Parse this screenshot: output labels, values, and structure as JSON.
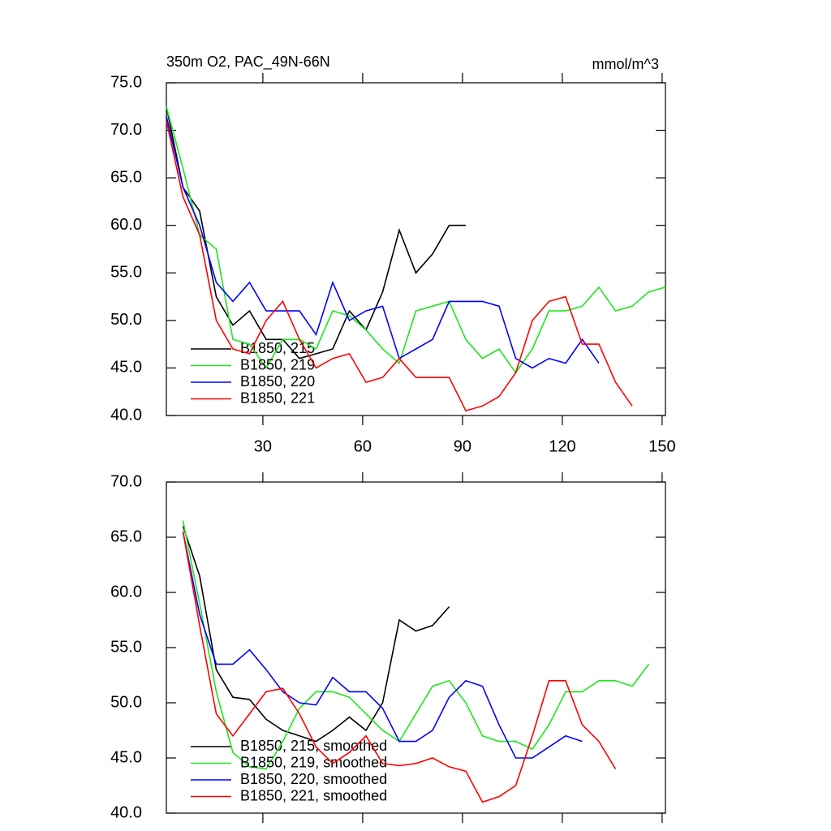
{
  "chart_data": [
    {
      "type": "line",
      "title": "350m O2, PAC_49N-66N",
      "y_units": "mmol/m^3",
      "x": [
        1,
        6,
        11,
        16,
        21,
        26,
        31,
        36,
        41,
        46,
        51,
        56,
        61,
        66,
        71,
        76,
        81,
        86,
        91,
        96,
        101,
        106,
        111,
        116,
        121,
        126,
        131,
        136,
        141,
        146,
        151
      ],
      "xlim": [
        1,
        151
      ],
      "xticks": [
        30,
        60,
        90,
        120,
        150
      ],
      "ylim": [
        40,
        75
      ],
      "yticks": [
        {
          "value": 40,
          "label": "40.0"
        },
        {
          "value": 45,
          "label": "45.0"
        },
        {
          "value": 50,
          "label": "50.0"
        },
        {
          "value": 55,
          "label": "55.0"
        },
        {
          "value": 60,
          "label": "60.0"
        },
        {
          "value": 65,
          "label": "65.0"
        },
        {
          "value": 70,
          "label": "70.0"
        },
        {
          "value": 75,
          "label": "75.0"
        }
      ],
      "legend": "lower left",
      "series": [
        {
          "name": "B1850, 215",
          "color": "#000000",
          "values": [
            72.5,
            64,
            61.5,
            52.5,
            49.5,
            51,
            48,
            48,
            46,
            46.5,
            47,
            51,
            49,
            53,
            59.5,
            55,
            57,
            60,
            60,
            null,
            null,
            null,
            null,
            null,
            null,
            null,
            null,
            null,
            null,
            null,
            null
          ]
        },
        {
          "name": "B1850, 219",
          "color": "#1ee61e",
          "values": [
            72.5,
            66,
            59,
            57.5,
            48,
            47.5,
            45,
            48,
            48,
            47,
            51,
            50.5,
            49,
            47,
            45.5,
            51,
            51.5,
            52,
            48,
            46,
            47,
            44.5,
            47,
            51,
            51,
            51.5,
            53.5,
            51,
            51.5,
            53,
            53.5
          ]
        },
        {
          "name": "B1850, 220",
          "color": "#0000ff",
          "values": [
            71.5,
            64,
            60,
            54,
            52,
            54,
            51,
            51,
            51,
            48.5,
            54,
            50,
            51,
            51.5,
            46,
            47,
            48,
            52,
            52,
            52,
            51.5,
            46,
            45,
            46,
            45.5,
            48,
            45.5,
            null,
            null,
            null,
            null
          ]
        },
        {
          "name": "B1850, 221",
          "color": "#ff0000",
          "values": [
            71,
            63,
            59,
            50,
            47,
            46.5,
            50,
            52,
            48,
            45,
            46,
            46.5,
            43.5,
            44,
            46,
            44,
            44,
            44,
            40.5,
            41,
            42,
            44.5,
            50,
            52,
            52.5,
            47.5,
            47.5,
            43.5,
            41,
            null,
            null
          ]
        }
      ]
    },
    {
      "type": "line",
      "x": [
        1,
        6,
        11,
        16,
        21,
        26,
        31,
        36,
        41,
        46,
        51,
        56,
        61,
        66,
        71,
        76,
        81,
        86,
        91,
        96,
        101,
        106,
        111,
        116,
        121,
        126,
        131,
        136,
        141,
        146,
        151
      ],
      "xlim": [
        1,
        151
      ],
      "xticks": [
        30,
        60,
        90,
        120,
        150
      ],
      "ylim": [
        40,
        70
      ],
      "yticks": [
        {
          "value": 40,
          "label": "40.0"
        },
        {
          "value": 45,
          "label": "45.0"
        },
        {
          "value": 50,
          "label": "50.0"
        },
        {
          "value": 55,
          "label": "55.0"
        },
        {
          "value": 60,
          "label": "60.0"
        },
        {
          "value": 65,
          "label": "65.0"
        },
        {
          "value": 70,
          "label": "70.0"
        }
      ],
      "legend": "lower left",
      "series": [
        {
          "name": "B1850, 215, smoothed",
          "color": "#000000",
          "values": [
            null,
            66,
            61.5,
            53,
            50.5,
            50.3,
            48.5,
            47.5,
            47,
            46.5,
            47.5,
            48.7,
            47.5,
            50,
            57.5,
            56.5,
            57,
            58.7,
            null,
            null,
            null,
            null,
            null,
            null,
            null,
            null,
            null,
            null,
            null,
            null,
            null
          ]
        },
        {
          "name": "B1850, 219, smoothed",
          "color": "#1ee61e",
          "values": [
            null,
            66.5,
            59,
            51,
            45.5,
            44.2,
            44,
            46.5,
            49.5,
            51,
            51,
            50.5,
            49,
            47.5,
            46.5,
            49,
            51.5,
            52,
            50,
            47,
            46.5,
            46.5,
            45.8,
            48,
            51,
            51,
            52,
            52,
            51.5,
            53.5,
            null
          ]
        },
        {
          "name": "B1850, 220, smoothed",
          "color": "#0000ff",
          "values": [
            null,
            65.5,
            58,
            53.5,
            53.5,
            54.8,
            53,
            51,
            50,
            49.8,
            52.3,
            51,
            51,
            49.5,
            46.5,
            46.5,
            47.5,
            50.5,
            52,
            51.5,
            48,
            45,
            45,
            46,
            47,
            46.5,
            null,
            null,
            null,
            null,
            null
          ]
        },
        {
          "name": "B1850, 221, smoothed",
          "color": "#ff0000",
          "values": [
            null,
            65.5,
            57,
            49,
            47,
            49,
            51,
            51.3,
            49,
            46,
            44.5,
            45.5,
            47,
            44.5,
            44.3,
            44.5,
            45,
            44.2,
            43.8,
            41,
            41.5,
            42.5,
            47,
            52,
            52,
            48,
            46.5,
            44,
            null,
            null,
            null
          ]
        }
      ]
    }
  ]
}
